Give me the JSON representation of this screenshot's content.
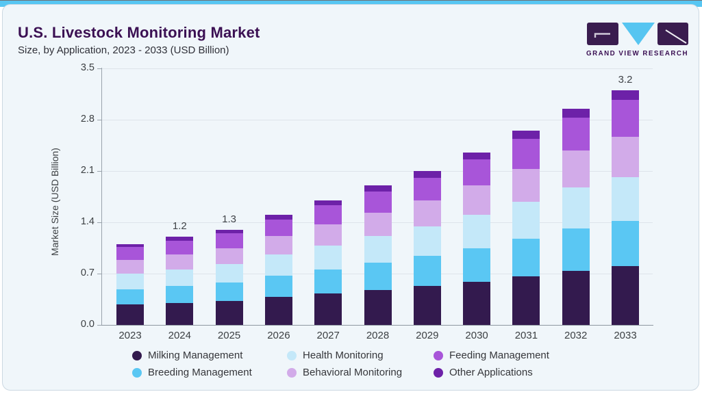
{
  "header": {
    "title": "U.S. Livestock Monitoring Market",
    "subtitle": "Size, by Application, 2023 - 2033 (USD Billion)"
  },
  "logo": {
    "brand": "GRAND VIEW RESEARCH",
    "mark_color": "#3a1d4f",
    "triangle_color": "#56c5f1"
  },
  "colors": {
    "accent_strip": "#57c6f2",
    "card_background": "#f0f6fa",
    "card_border": "#ccd8e2",
    "title_text": "#3b1053",
    "axis_text": "#3c4043",
    "gridline": "#dde4ea"
  },
  "chart_data": {
    "type": "bar",
    "variant": "stacked",
    "title": "U.S. Livestock Monitoring Market",
    "subtitle": "Size, by Application, 2023 - 2033 (USD Billion)",
    "xlabel": "",
    "ylabel": "Market Size (USD Billion)",
    "ylim": [
      0,
      3.5
    ],
    "yticks": [
      "0.0",
      "0.7",
      "1.4",
      "2.1",
      "2.8",
      "3.5"
    ],
    "grid": "horizontal",
    "legend_position": "bottom",
    "categories": [
      "2023",
      "2024",
      "2025",
      "2026",
      "2027",
      "2028",
      "2029",
      "2030",
      "2031",
      "2032",
      "2033"
    ],
    "series": [
      {
        "name": "Milking Management",
        "color": "#331a4e",
        "values": [
          0.28,
          0.3,
          0.33,
          0.38,
          0.43,
          0.48,
          0.53,
          0.59,
          0.66,
          0.74,
          0.8
        ]
      },
      {
        "name": "Breeding Management",
        "color": "#5ac7f3",
        "values": [
          0.21,
          0.23,
          0.25,
          0.29,
          0.33,
          0.37,
          0.41,
          0.46,
          0.52,
          0.58,
          0.62
        ]
      },
      {
        "name": "Health Monitoring",
        "color": "#c4e8f9",
        "values": [
          0.21,
          0.23,
          0.25,
          0.29,
          0.32,
          0.36,
          0.4,
          0.45,
          0.5,
          0.56,
          0.6
        ]
      },
      {
        "name": "Behavioral Monitoring",
        "color": "#d2abe9",
        "values": [
          0.19,
          0.2,
          0.22,
          0.25,
          0.29,
          0.32,
          0.36,
          0.4,
          0.45,
          0.5,
          0.55
        ]
      },
      {
        "name": "Feeding Management",
        "color": "#a855d9",
        "values": [
          0.17,
          0.19,
          0.2,
          0.23,
          0.26,
          0.29,
          0.31,
          0.36,
          0.41,
          0.45,
          0.5
        ]
      },
      {
        "name": "Other Applications",
        "color": "#6d21a8",
        "values": [
          0.04,
          0.05,
          0.05,
          0.06,
          0.07,
          0.08,
          0.09,
          0.09,
          0.11,
          0.12,
          0.13
        ]
      }
    ],
    "totals": [
      1.1,
      1.2,
      1.3,
      1.5,
      1.7,
      1.9,
      2.1,
      2.35,
      2.65,
      2.95,
      3.2
    ],
    "bar_labels": {
      "2024": "1.2",
      "2025": "1.3",
      "2033": "3.2"
    },
    "legend_order": [
      "Milking Management",
      "Health Monitoring",
      "Feeding Management",
      "Breeding Management",
      "Behavioral Monitoring",
      "Other Applications"
    ]
  }
}
